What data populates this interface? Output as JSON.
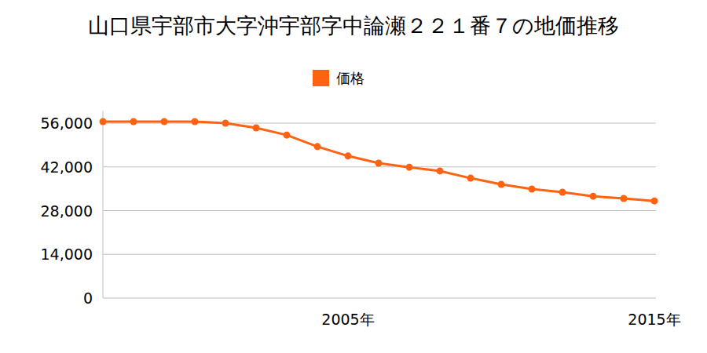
{
  "chart_data": {
    "type": "line",
    "title": "山口県宇部市大字沖宇部字中論瀬２２１番７の地価推移",
    "categories": [
      null,
      null,
      null,
      null,
      null,
      null,
      null,
      null,
      "2005年",
      null,
      null,
      null,
      null,
      null,
      null,
      null,
      null,
      null,
      "2015年"
    ],
    "series": [
      {
        "name": "価格",
        "color": "#ff6311",
        "marker": "circle",
        "values": [
          56500,
          56500,
          56500,
          56500,
          56000,
          54500,
          52200,
          48500,
          45500,
          43200,
          41900,
          40700,
          38400,
          36400,
          34900,
          33900,
          32600,
          31900,
          31100
        ]
      }
    ],
    "ylim": [
      0,
      60000
    ],
    "yticks": [
      0,
      {
        "value": 14000,
        "label": "14,000"
      },
      {
        "value": 28000,
        "label": "28,000"
      },
      {
        "value": 42000,
        "label": "42,000"
      },
      {
        "value": 56000,
        "label": "56,000"
      }
    ],
    "grid": true,
    "legend": "top"
  }
}
